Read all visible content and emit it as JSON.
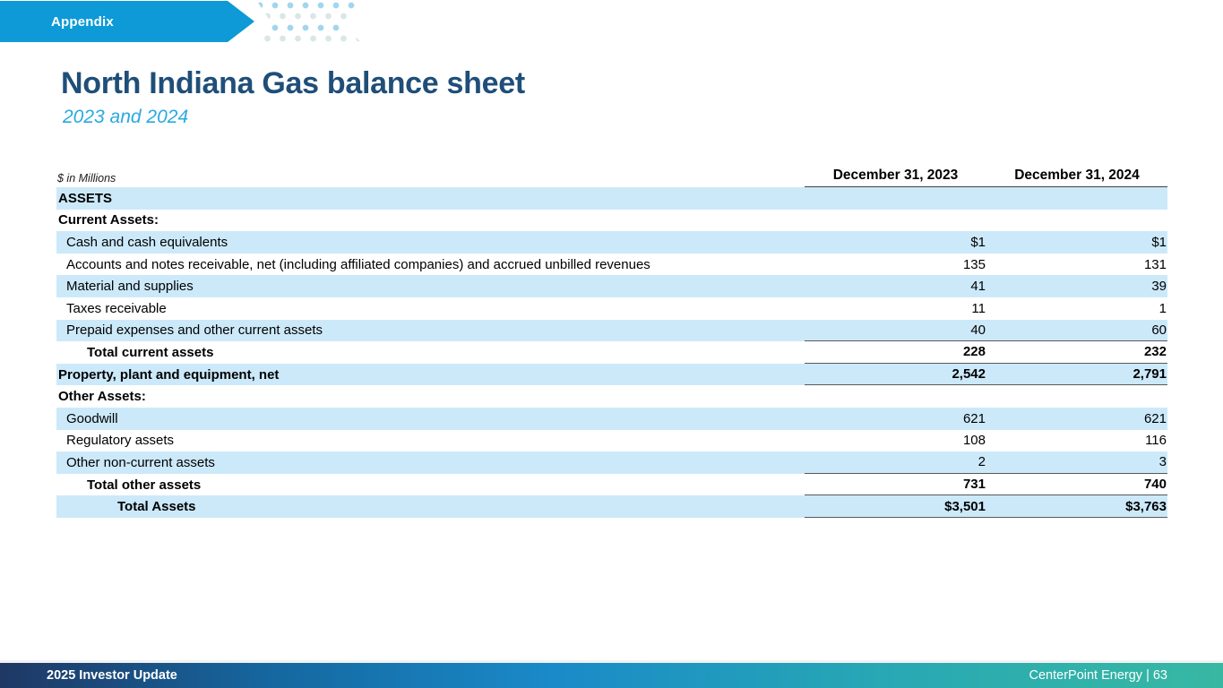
{
  "banner": {
    "label": "Appendix"
  },
  "title": "North Indiana Gas balance sheet",
  "subtitle": "2023 and 2024",
  "table": {
    "units_note": "$ in Millions",
    "col_headers": [
      "December 31, 2023",
      "December 31, 2024"
    ],
    "rows": [
      {
        "label": "ASSETS",
        "y2023": "",
        "y2024": ""
      },
      {
        "label": "Current Assets:",
        "y2023": "",
        "y2024": ""
      },
      {
        "label": "Cash and cash equivalents",
        "y2023": "$1",
        "y2024": "$1"
      },
      {
        "label": "Accounts and notes receivable, net (including affiliated companies) and accrued unbilled revenues",
        "y2023": "135",
        "y2024": "131"
      },
      {
        "label": "Material and supplies",
        "y2023": "41",
        "y2024": "39"
      },
      {
        "label": "Taxes receivable",
        "y2023": "11",
        "y2024": "1"
      },
      {
        "label": "Prepaid expenses and other current assets",
        "y2023": "40",
        "y2024": "60"
      },
      {
        "label": "Total current assets",
        "y2023": "228",
        "y2024": "232"
      },
      {
        "label": "Property, plant and equipment, net",
        "y2023": "2,542",
        "y2024": "2,791"
      },
      {
        "label": "Other Assets:",
        "y2023": "",
        "y2024": ""
      },
      {
        "label": "Goodwill",
        "y2023": "621",
        "y2024": "621"
      },
      {
        "label": "Regulatory assets",
        "y2023": "108",
        "y2024": "116"
      },
      {
        "label": "Other non-current assets",
        "y2023": "2",
        "y2024": "3"
      },
      {
        "label": "Total other assets",
        "y2023": "731",
        "y2024": "740"
      },
      {
        "label": "Total Assets",
        "y2023": "$3,501",
        "y2024": "$3,763"
      }
    ]
  },
  "footer": {
    "left": "2025 Investor Update",
    "right": "CenterPoint Energy | 63"
  },
  "colors": {
    "banner_blue": "#0d9ad6",
    "title_navy": "#1f4e79",
    "subtitle_blue": "#29a9e1",
    "row_blue": "#cce9fa",
    "rule_gray": "#595959",
    "footer_gradient_start": "#1f3864",
    "footer_gradient_mid": "#1a8ac8",
    "footer_gradient_end": "#38b8a2"
  }
}
